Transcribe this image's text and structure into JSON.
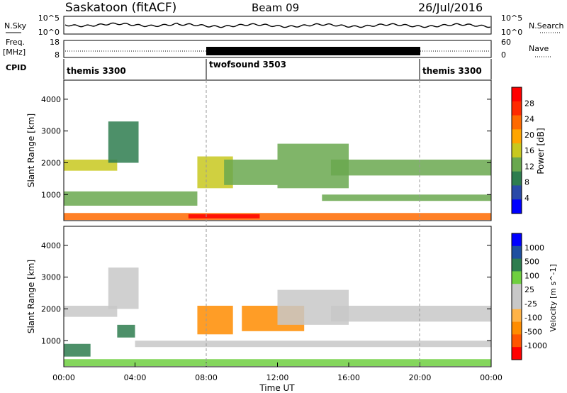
{
  "header": {
    "station": "Saskatoon (fitACF)",
    "beam": "Beam 09",
    "date": "26/Jul/2016"
  },
  "noise_panel": {
    "left_label": "N.Sky",
    "right_label": "N.Search",
    "left_ticks": [
      "10^5",
      "10^0"
    ],
    "right_ticks": [
      "10^5",
      "10^0"
    ]
  },
  "freq_panel": {
    "left_label_1": "Freq.",
    "left_label_2": "[MHz]",
    "right_label": "Nave",
    "left_ticks": [
      "18",
      "8"
    ],
    "right_ticks": [
      "60",
      "0"
    ]
  },
  "cpid_panel": {
    "label": "CPID",
    "segments": [
      {
        "name": "themis 3300",
        "start": 0,
        "end": 8
      },
      {
        "name": "twofsound 3503",
        "start": 8,
        "end": 20
      },
      {
        "name": "themis 3300",
        "start": 20,
        "end": 24
      }
    ]
  },
  "colors": {
    "power_scale": [
      "#0000ff",
      "#2a4aa8",
      "#2e7d4f",
      "#6aa84f",
      "#c8c81e",
      "#ffa500",
      "#ff6a00",
      "#ff2a00",
      "#ff0000"
    ],
    "velocity_scale": [
      "#ff0000",
      "#ff5500",
      "#ff8c00",
      "#ffb347",
      "#c8c8c8",
      "#c8c8c8",
      "#6fcf3f",
      "#2e7d4f",
      "#1e4fa0",
      "#0000ff"
    ]
  },
  "chart_data": [
    {
      "type": "heatmap",
      "title": "",
      "xlabel": "Time UT",
      "ylabel": "Slant Range [km]",
      "xlim": [
        0,
        24
      ],
      "ylim": [
        180,
        4600
      ],
      "x_ticks": [
        "00:00",
        "04:00",
        "08:00",
        "12:00",
        "16:00",
        "20:00",
        "00:00"
      ],
      "y_ticks": [
        "1000",
        "2000",
        "3000",
        "4000"
      ],
      "colorbar": {
        "label": "Power [dB]",
        "ticks": [
          "4",
          "8",
          "12",
          "16",
          "20",
          "24",
          "28"
        ],
        "range": [
          0,
          30
        ]
      },
      "regions": [
        {
          "t0": 0.0,
          "t1": 3.0,
          "r0": 1750,
          "r1": 2100,
          "value": 14
        },
        {
          "t0": 2.5,
          "t1": 4.2,
          "r0": 2000,
          "r1": 3300,
          "value": 8
        },
        {
          "t0": 0.0,
          "t1": 7.5,
          "r0": 650,
          "r1": 1100,
          "value": 11
        },
        {
          "t0": 0.0,
          "t1": 24.0,
          "r0": 200,
          "r1": 420,
          "value": 22
        },
        {
          "t0": 7.0,
          "t1": 11.0,
          "r0": 250,
          "r1": 380,
          "value": 28
        },
        {
          "t0": 7.5,
          "t1": 9.5,
          "r0": 1200,
          "r1": 2200,
          "value": 16
        },
        {
          "t0": 9.0,
          "t1": 12.0,
          "r0": 1300,
          "r1": 2100,
          "value": 12
        },
        {
          "t0": 12.0,
          "t1": 16.0,
          "r0": 1200,
          "r1": 2600,
          "value": 10
        },
        {
          "t0": 14.5,
          "t1": 24.0,
          "r0": 800,
          "r1": 1000,
          "value": 11
        },
        {
          "t0": 15.0,
          "t1": 24.0,
          "r0": 1600,
          "r1": 2100,
          "value": 13
        }
      ]
    },
    {
      "type": "heatmap",
      "title": "",
      "xlabel": "Time UT",
      "ylabel": "Slant Range [km]",
      "xlim": [
        0,
        24
      ],
      "ylim": [
        180,
        4600
      ],
      "x_ticks": [
        "00:00",
        "04:00",
        "08:00",
        "12:00",
        "16:00",
        "20:00",
        "00:00"
      ],
      "y_ticks": [
        "1000",
        "2000",
        "3000",
        "4000"
      ],
      "colorbar": {
        "label": "Velocity [m s^-1]",
        "ticks": [
          "1000",
          "500",
          "100",
          "25",
          "-25",
          "-100",
          "-500",
          "-1000"
        ],
        "range": [
          -1000,
          1000
        ]
      },
      "regions": [
        {
          "t0": 0.0,
          "t1": 3.0,
          "r0": 1750,
          "r1": 2100,
          "value": 0
        },
        {
          "t0": 2.5,
          "t1": 4.2,
          "r0": 2000,
          "r1": 3300,
          "value": 0
        },
        {
          "t0": 0.0,
          "t1": 1.5,
          "r0": 500,
          "r1": 900,
          "value": 150
        },
        {
          "t0": 3.0,
          "t1": 4.0,
          "r0": 1100,
          "r1": 1500,
          "value": 250
        },
        {
          "t0": 4.0,
          "t1": 24.0,
          "r0": 800,
          "r1": 1000,
          "value": 0
        },
        {
          "t0": 7.5,
          "t1": 9.5,
          "r0": 1200,
          "r1": 2100,
          "value": -300
        },
        {
          "t0": 10.0,
          "t1": 13.5,
          "r0": 1300,
          "r1": 2100,
          "value": -400
        },
        {
          "t0": 0.0,
          "t1": 24.0,
          "r0": 200,
          "r1": 420,
          "value": 60
        },
        {
          "t0": 15.0,
          "t1": 24.0,
          "r0": 1600,
          "r1": 2100,
          "value": 0
        },
        {
          "t0": 12.0,
          "t1": 16.0,
          "r0": 1500,
          "r1": 2600,
          "value": 0
        }
      ]
    }
  ]
}
